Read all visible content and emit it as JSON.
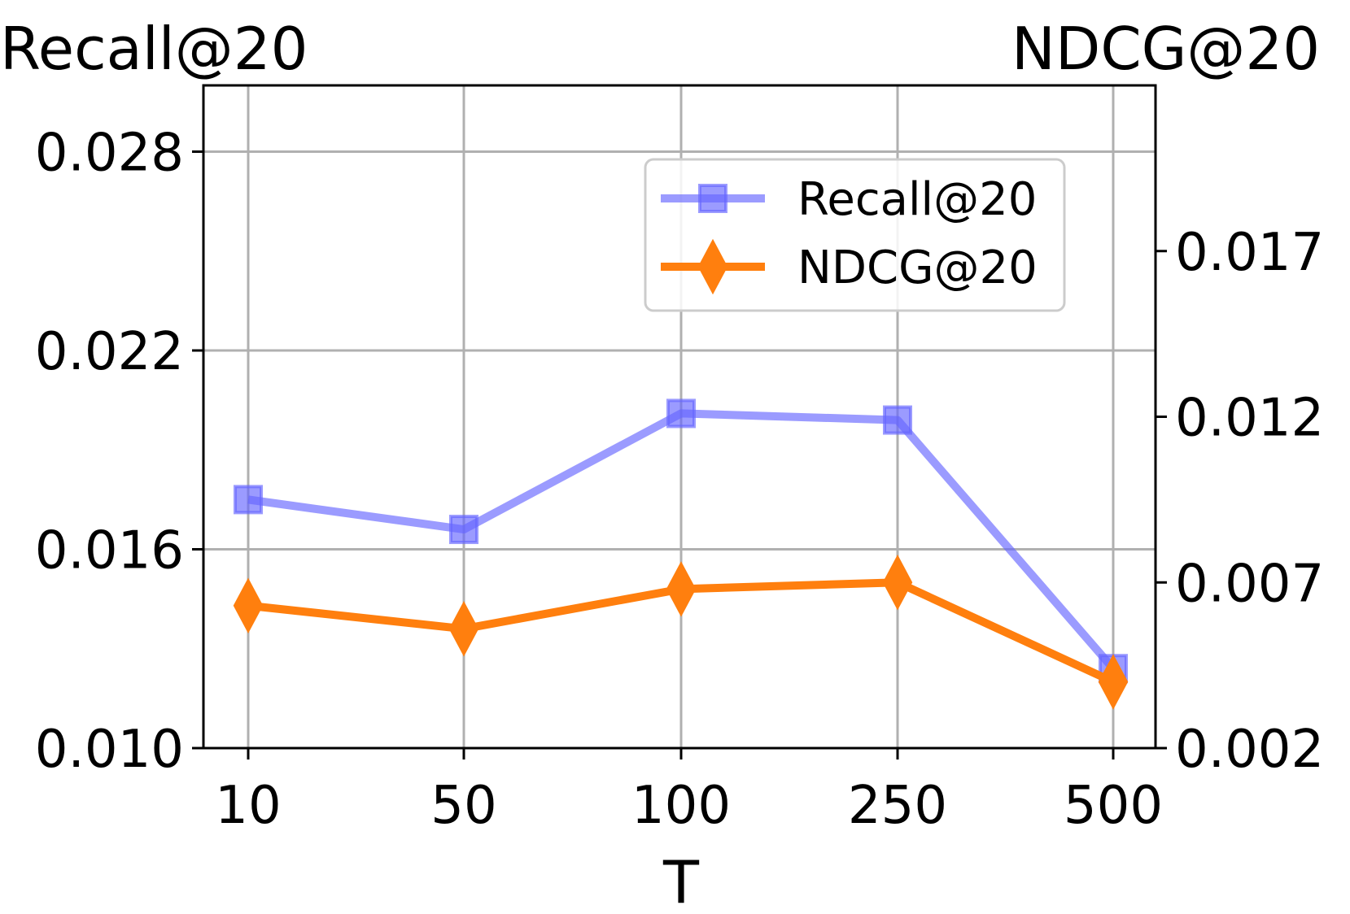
{
  "chart_data": {
    "type": "line",
    "xlabel": "T",
    "categories": [
      "10",
      "50",
      "100",
      "250",
      "500"
    ],
    "left_axis": {
      "label": "Recall@20",
      "ylim": [
        0.01,
        0.03
      ],
      "ticks": [
        0.01,
        0.016,
        0.022,
        0.028
      ],
      "tick_labels": [
        "0.010",
        "0.016",
        "0.022",
        "0.028"
      ]
    },
    "right_axis": {
      "label": "NDCG@20",
      "ylim": [
        0.002,
        0.022
      ],
      "ticks": [
        0.002,
        0.007,
        0.012,
        0.017
      ],
      "tick_labels": [
        "0.002",
        "0.007",
        "0.012",
        "0.017"
      ]
    },
    "series": [
      {
        "name": "Recall@20",
        "axis": "left",
        "color": "#6666ff",
        "marker": "square",
        "values": [
          0.0175,
          0.0166,
          0.0201,
          0.0199,
          0.0124
        ]
      },
      {
        "name": "NDCG@20",
        "axis": "right",
        "color": "#ff7f0e",
        "marker": "diamond",
        "values": [
          0.0063,
          0.0056,
          0.0068,
          0.007,
          0.004
        ]
      }
    ],
    "legend": {
      "position": "upper-right",
      "entries": [
        "Recall@20",
        "NDCG@20"
      ]
    },
    "grid": true
  }
}
